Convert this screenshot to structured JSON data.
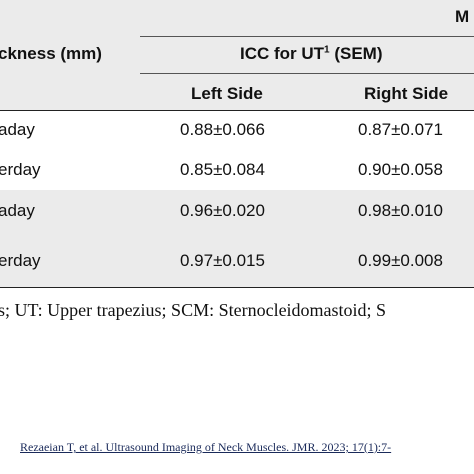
{
  "header": {
    "top_label": "M",
    "first_column": "ckness (mm)",
    "icc_title": "ICC for UT",
    "icc_superscript": "1",
    "icc_suffix": "(SEM)",
    "left_column": "Left Side",
    "right_column": "Right Side"
  },
  "table": {
    "rows": [
      [
        "aday",
        "0.88±0.066",
        "0.87±0.071"
      ],
      [
        "erday",
        "0.85±0.084",
        "0.90±0.058"
      ],
      [
        "aday",
        "0.96±0.020",
        "0.98±0.010"
      ],
      [
        "erday",
        "0.97±0.015",
        "0.99±0.008"
      ]
    ]
  },
  "footnote": "s; UT: Upper trapezius; SCM: Sternocleidomastoid; S",
  "citation": "Rezaeian T, et al. Ultrasound Imaging of Neck Muscles. JMR. 2023; 17(1):7-"
}
